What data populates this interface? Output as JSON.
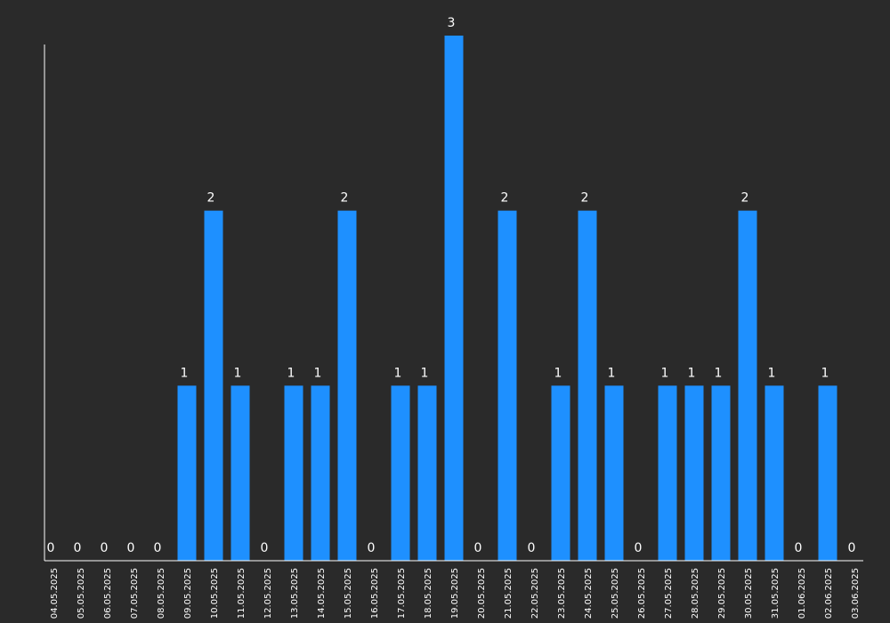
{
  "chart_data": {
    "type": "bar",
    "categories": [
      "04.05.2025",
      "05.05.2025",
      "06.05.2025",
      "07.05.2025",
      "08.05.2025",
      "09.05.2025",
      "10.05.2025",
      "11.05.2025",
      "12.05.2025",
      "13.05.2025",
      "14.05.2025",
      "15.05.2025",
      "16.05.2025",
      "17.05.2025",
      "18.05.2025",
      "19.05.2025",
      "20.05.2025",
      "21.05.2025",
      "22.05.2025",
      "23.05.2025",
      "24.05.2025",
      "25.05.2025",
      "26.05.2025",
      "27.05.2025",
      "28.05.2025",
      "29.05.2025",
      "30.05.2025",
      "31.05.2025",
      "01.06.2025",
      "02.06.2025",
      "03.06.2025"
    ],
    "values": [
      0,
      0,
      0,
      0,
      0,
      1,
      2,
      1,
      0,
      1,
      1,
      2,
      0,
      1,
      1,
      3,
      0,
      2,
      0,
      1,
      2,
      1,
      0,
      1,
      1,
      1,
      2,
      1,
      0,
      1,
      0
    ],
    "title": "",
    "xlabel": "",
    "ylabel": "",
    "ylim": [
      0,
      3
    ],
    "grid": false,
    "legend": "none",
    "colors": {
      "background": "#2a2a2a",
      "bar": "#1e90ff",
      "axis": "#ffffff",
      "text": "#ffffff"
    }
  }
}
